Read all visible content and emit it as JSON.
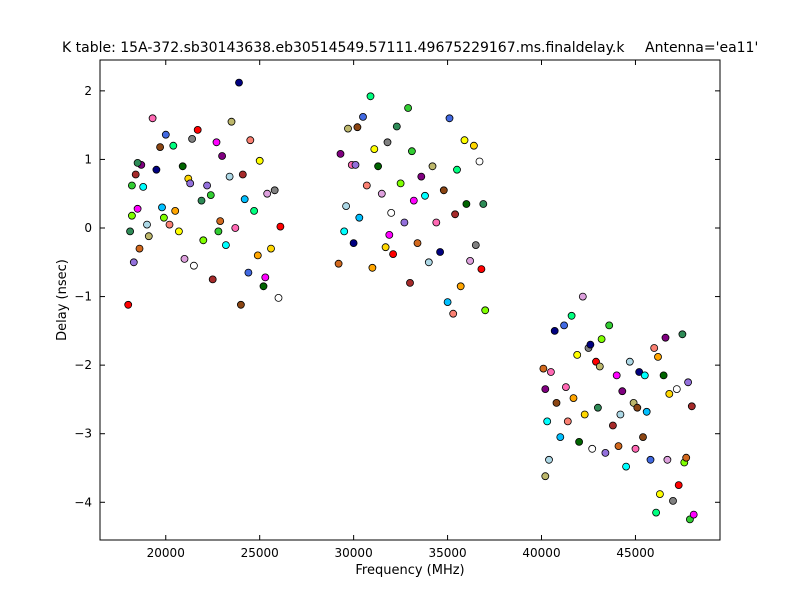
{
  "chart_data": {
    "type": "scatter",
    "title": "K table: 15A-372.sb30143638.eb30514549.57111.49675229167.ms.finaldelay.k",
    "antenna_label": "Antenna='ea11'",
    "xlabel": "Frequency (MHz)",
    "ylabel": "Delay (nsec)",
    "xlim": [
      16500,
      49500
    ],
    "ylim": [
      -4.55,
      2.45
    ],
    "x_ticks": [
      20000,
      25000,
      30000,
      35000,
      40000,
      45000
    ],
    "x_tick_labels": [
      "20000",
      "25000",
      "30000",
      "35000",
      "40000",
      "45000"
    ],
    "y_ticks": [
      2,
      1,
      0,
      -1,
      -2,
      -3,
      -4
    ],
    "y_tick_labels": [
      "2",
      "1",
      "0",
      "−1",
      "−2",
      "−3",
      "−4"
    ],
    "grid": false,
    "legend": "none",
    "marker_colors": [
      "#ff0000",
      "#00bfff",
      "#32cd32",
      "#ffa500",
      "#800080",
      "#ffd700",
      "#ff69b4",
      "#2e8b57",
      "#4169e1",
      "#a52a2a",
      "#ffff00",
      "#00ffff",
      "#808080",
      "#000080",
      "#7fff00",
      "#fa8072",
      "#ff00ff",
      "#006400",
      "#add8e6",
      "#ffffff",
      "#8b4513",
      "#9370db",
      "#00ff7f",
      "#d2691e",
      "#dda0dd",
      "#bdb76b"
    ],
    "points": [
      {
        "x": 18000,
        "y": -1.12
      },
      {
        "x": 18100,
        "y": -0.05
      },
      {
        "x": 18200,
        "y": 0.18
      },
      {
        "x": 18300,
        "y": -0.5
      },
      {
        "x": 18200,
        "y": 0.62
      },
      {
        "x": 18400,
        "y": 0.78
      },
      {
        "x": 18500,
        "y": 0.28
      },
      {
        "x": 18600,
        "y": -0.3
      },
      {
        "x": 18700,
        "y": 0.92
      },
      {
        "x": 18800,
        "y": 0.6
      },
      {
        "x": 19000,
        "y": 0.05
      },
      {
        "x": 19100,
        "y": -0.12
      },
      {
        "x": 19300,
        "y": 1.6
      },
      {
        "x": 19500,
        "y": 0.85
      },
      {
        "x": 19700,
        "y": 1.18
      },
      {
        "x": 19800,
        "y": 0.3
      },
      {
        "x": 20000,
        "y": 1.36
      },
      {
        "x": 20200,
        "y": 0.05
      },
      {
        "x": 20400,
        "y": 1.2
      },
      {
        "x": 20500,
        "y": 0.25
      },
      {
        "x": 20700,
        "y": -0.05
      },
      {
        "x": 20900,
        "y": 0.9
      },
      {
        "x": 21000,
        "y": -0.45
      },
      {
        "x": 21200,
        "y": 0.72
      },
      {
        "x": 21400,
        "y": 1.3
      },
      {
        "x": 21500,
        "y": -0.55
      },
      {
        "x": 21700,
        "y": 1.43
      },
      {
        "x": 21900,
        "y": 0.4
      },
      {
        "x": 22000,
        "y": -0.18
      },
      {
        "x": 22200,
        "y": 0.62
      },
      {
        "x": 22400,
        "y": 0.48
      },
      {
        "x": 22500,
        "y": -0.75
      },
      {
        "x": 22700,
        "y": 1.25
      },
      {
        "x": 22900,
        "y": 0.1
      },
      {
        "x": 23000,
        "y": 1.05
      },
      {
        "x": 23200,
        "y": -0.25
      },
      {
        "x": 23400,
        "y": 0.75
      },
      {
        "x": 23500,
        "y": 1.55
      },
      {
        "x": 23700,
        "y": 0.0
      },
      {
        "x": 23900,
        "y": 2.12
      },
      {
        "x": 24000,
        "y": -1.12
      },
      {
        "x": 24200,
        "y": 0.42
      },
      {
        "x": 24400,
        "y": -0.65
      },
      {
        "x": 24500,
        "y": 1.28
      },
      {
        "x": 24700,
        "y": 0.25
      },
      {
        "x": 24900,
        "y": -0.4
      },
      {
        "x": 25000,
        "y": 0.98
      },
      {
        "x": 25200,
        "y": -0.85
      },
      {
        "x": 25400,
        "y": 0.5
      },
      {
        "x": 25600,
        "y": -0.3
      },
      {
        "x": 25800,
        "y": 0.55
      },
      {
        "x": 26000,
        "y": -1.02
      },
      {
        "x": 26100,
        "y": 0.02
      },
      {
        "x": 18500,
        "y": 0.95
      },
      {
        "x": 19900,
        "y": 0.15
      },
      {
        "x": 21300,
        "y": 0.65
      },
      {
        "x": 22800,
        "y": -0.05
      },
      {
        "x": 24100,
        "y": 0.78
      },
      {
        "x": 25300,
        "y": -0.72
      },
      {
        "x": 29200,
        "y": -0.52
      },
      {
        "x": 29300,
        "y": 1.08
      },
      {
        "x": 29500,
        "y": -0.05
      },
      {
        "x": 29600,
        "y": 0.32
      },
      {
        "x": 29700,
        "y": 1.45
      },
      {
        "x": 29900,
        "y": 0.92
      },
      {
        "x": 30000,
        "y": -0.22
      },
      {
        "x": 30200,
        "y": 1.47
      },
      {
        "x": 30300,
        "y": 0.15
      },
      {
        "x": 30500,
        "y": 1.62
      },
      {
        "x": 30700,
        "y": 0.62
      },
      {
        "x": 30900,
        "y": 1.92
      },
      {
        "x": 31000,
        "y": -0.58
      },
      {
        "x": 31100,
        "y": 1.15
      },
      {
        "x": 31300,
        "y": 0.9
      },
      {
        "x": 31500,
        "y": 0.5
      },
      {
        "x": 31700,
        "y": -0.28
      },
      {
        "x": 31800,
        "y": 1.25
      },
      {
        "x": 32000,
        "y": 0.22
      },
      {
        "x": 32100,
        "y": -0.38
      },
      {
        "x": 32300,
        "y": 1.48
      },
      {
        "x": 32500,
        "y": 0.65
      },
      {
        "x": 32700,
        "y": 0.08
      },
      {
        "x": 32900,
        "y": 1.75
      },
      {
        "x": 33000,
        "y": -0.8
      },
      {
        "x": 33200,
        "y": 0.4
      },
      {
        "x": 33400,
        "y": -0.22
      },
      {
        "x": 33600,
        "y": 0.75
      },
      {
        "x": 33800,
        "y": 0.47
      },
      {
        "x": 34000,
        "y": -0.5
      },
      {
        "x": 34200,
        "y": 0.9
      },
      {
        "x": 34400,
        "y": 0.08
      },
      {
        "x": 34600,
        "y": -0.35
      },
      {
        "x": 34800,
        "y": 0.55
      },
      {
        "x": 35000,
        "y": -1.08
      },
      {
        "x": 35100,
        "y": 1.6
      },
      {
        "x": 35300,
        "y": -1.25
      },
      {
        "x": 35500,
        "y": 0.85
      },
      {
        "x": 35700,
        "y": -0.85
      },
      {
        "x": 35900,
        "y": 1.28
      },
      {
        "x": 36000,
        "y": 0.35
      },
      {
        "x": 36200,
        "y": -0.48
      },
      {
        "x": 36400,
        "y": 1.2
      },
      {
        "x": 36500,
        "y": -0.25
      },
      {
        "x": 36700,
        "y": 0.97
      },
      {
        "x": 36800,
        "y": -0.6
      },
      {
        "x": 36900,
        "y": 0.35
      },
      {
        "x": 37000,
        "y": -1.2
      },
      {
        "x": 30100,
        "y": 0.92
      },
      {
        "x": 33100,
        "y": 1.12
      },
      {
        "x": 35400,
        "y": 0.2
      },
      {
        "x": 31900,
        "y": -0.1
      },
      {
        "x": 40100,
        "y": -2.05
      },
      {
        "x": 40200,
        "y": -2.35
      },
      {
        "x": 40300,
        "y": -2.82
      },
      {
        "x": 40400,
        "y": -3.38
      },
      {
        "x": 40200,
        "y": -3.62
      },
      {
        "x": 40500,
        "y": -2.1
      },
      {
        "x": 40700,
        "y": -1.5
      },
      {
        "x": 40800,
        "y": -2.55
      },
      {
        "x": 41000,
        "y": -3.05
      },
      {
        "x": 41200,
        "y": -1.42
      },
      {
        "x": 41400,
        "y": -2.82
      },
      {
        "x": 41600,
        "y": -1.28
      },
      {
        "x": 41700,
        "y": -2.48
      },
      {
        "x": 41900,
        "y": -1.85
      },
      {
        "x": 42000,
        "y": -3.12
      },
      {
        "x": 42200,
        "y": -1.0
      },
      {
        "x": 42300,
        "y": -2.72
      },
      {
        "x": 42500,
        "y": -1.75
      },
      {
        "x": 42700,
        "y": -3.22
      },
      {
        "x": 42900,
        "y": -1.95
      },
      {
        "x": 43000,
        "y": -2.62
      },
      {
        "x": 43200,
        "y": -1.62
      },
      {
        "x": 43400,
        "y": -3.28
      },
      {
        "x": 43600,
        "y": -1.42
      },
      {
        "x": 43800,
        "y": -2.88
      },
      {
        "x": 44000,
        "y": -2.15
      },
      {
        "x": 44100,
        "y": -3.18
      },
      {
        "x": 44300,
        "y": -2.38
      },
      {
        "x": 44500,
        "y": -3.48
      },
      {
        "x": 44700,
        "y": -1.95
      },
      {
        "x": 44900,
        "y": -2.55
      },
      {
        "x": 45000,
        "y": -3.22
      },
      {
        "x": 45200,
        "y": -2.1
      },
      {
        "x": 45400,
        "y": -3.05
      },
      {
        "x": 45600,
        "y": -2.68
      },
      {
        "x": 45800,
        "y": -3.38
      },
      {
        "x": 46000,
        "y": -1.75
      },
      {
        "x": 46100,
        "y": -4.15
      },
      {
        "x": 46200,
        "y": -1.88
      },
      {
        "x": 46300,
        "y": -3.88
      },
      {
        "x": 46500,
        "y": -2.15
      },
      {
        "x": 46700,
        "y": -3.38
      },
      {
        "x": 46800,
        "y": -2.42
      },
      {
        "x": 47000,
        "y": -3.98
      },
      {
        "x": 47200,
        "y": -2.35
      },
      {
        "x": 47300,
        "y": -3.75
      },
      {
        "x": 47500,
        "y": -1.55
      },
      {
        "x": 47600,
        "y": -3.42
      },
      {
        "x": 47800,
        "y": -2.25
      },
      {
        "x": 47900,
        "y": -4.25
      },
      {
        "x": 48000,
        "y": -2.6
      },
      {
        "x": 48100,
        "y": -4.18
      },
      {
        "x": 47700,
        "y": -3.35
      },
      {
        "x": 46600,
        "y": -1.6
      },
      {
        "x": 45500,
        "y": -2.15
      },
      {
        "x": 44200,
        "y": -2.72
      },
      {
        "x": 43100,
        "y": -2.02
      },
      {
        "x": 41300,
        "y": -2.32
      },
      {
        "x": 42600,
        "y": -1.7
      },
      {
        "x": 45100,
        "y": -2.62
      }
    ]
  }
}
